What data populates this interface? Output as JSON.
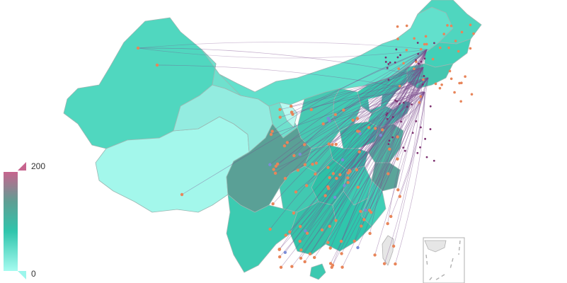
{
  "visual_map": {
    "max_label": "200",
    "min_label": "0",
    "colors": [
      "#a6fbf0",
      "#30c5ac",
      "#5f9e93",
      "#c7648e"
    ]
  },
  "map_colors": {
    "border": "#9ab7b2",
    "flow_line": "#7b4a8c",
    "point": "#e8855a",
    "point_alt": "#7a8cd8",
    "arrow": "#7b2f6e"
  }
}
